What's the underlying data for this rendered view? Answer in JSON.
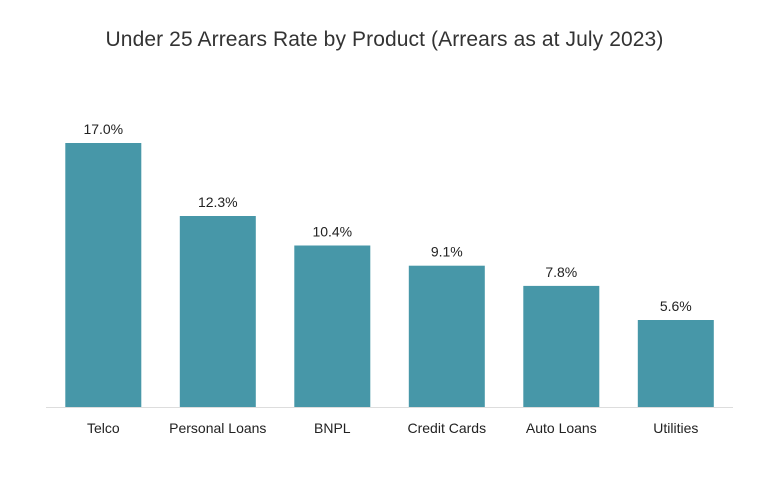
{
  "chart_data": {
    "type": "bar",
    "title": "Under 25 Arrears Rate by Product (Arrears as at July 2023)",
    "categories": [
      "Telco",
      "Personal Loans",
      "BNPL",
      "Credit Cards",
      "Auto Loans",
      "Utilities"
    ],
    "values": [
      17.0,
      12.3,
      10.4,
      9.1,
      7.8,
      5.6
    ],
    "data_labels": [
      "17.0%",
      "12.3%",
      "10.4%",
      "9.1%",
      "7.8%",
      "5.6%"
    ],
    "xlabel": "",
    "ylabel": "",
    "ylim": [
      0,
      17.0
    ],
    "grid": false,
    "legend": "none",
    "bar_color": "#4797a8",
    "axis_color": "#dddddd"
  }
}
